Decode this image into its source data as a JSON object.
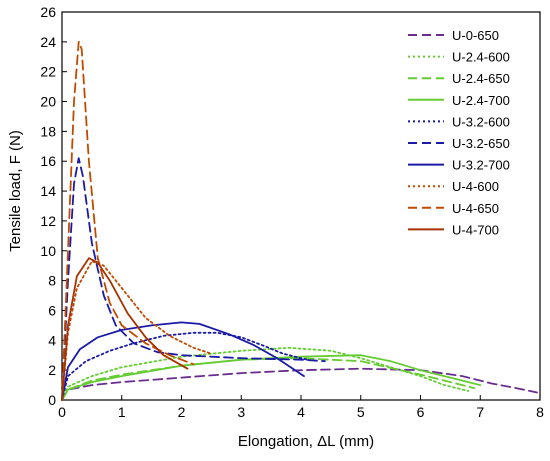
{
  "chart_data": {
    "type": "line",
    "title": "",
    "xlabel": "Elongation, ΔL (mm)",
    "ylabel": "Tensile load, F (N)",
    "xlim": [
      0,
      8
    ],
    "ylim": [
      0,
      26
    ],
    "xticks": [
      0,
      1,
      2,
      3,
      4,
      5,
      6,
      7,
      8
    ],
    "yticks": [
      0,
      2,
      4,
      6,
      8,
      10,
      12,
      14,
      16,
      18,
      20,
      22,
      24,
      26
    ],
    "grid": false,
    "legend_position": "top-right",
    "series": [
      {
        "name": "U-0-650",
        "color": "#6a2c91",
        "dash": "long-dash",
        "points": [
          [
            0,
            0
          ],
          [
            0.1,
            0.7
          ],
          [
            0.5,
            1.0
          ],
          [
            1,
            1.2
          ],
          [
            2,
            1.5
          ],
          [
            3,
            1.8
          ],
          [
            4,
            2.0
          ],
          [
            5,
            2.1
          ],
          [
            6,
            2.0
          ],
          [
            6.7,
            1.6
          ],
          [
            7.2,
            1.1
          ],
          [
            7.6,
            0.8
          ],
          [
            7.95,
            0.5
          ]
        ]
      },
      {
        "name": "U-2.4-600",
        "color": "#66cc33",
        "dash": "dot",
        "points": [
          [
            0,
            0
          ],
          [
            0.1,
            0.9
          ],
          [
            0.5,
            1.6
          ],
          [
            1,
            2.2
          ],
          [
            2,
            2.9
          ],
          [
            3,
            3.3
          ],
          [
            3.8,
            3.5
          ],
          [
            4.5,
            3.3
          ],
          [
            5,
            2.8
          ],
          [
            5.5,
            2.2
          ],
          [
            6,
            1.6
          ],
          [
            6.4,
            1.0
          ],
          [
            6.8,
            0.6
          ]
        ]
      },
      {
        "name": "U-2.4-650",
        "color": "#66cc33",
        "dash": "long-dash",
        "points": [
          [
            0,
            0
          ],
          [
            0.1,
            0.7
          ],
          [
            0.5,
            1.3
          ],
          [
            1,
            1.7
          ],
          [
            2,
            2.3
          ],
          [
            3,
            2.7
          ],
          [
            4,
            2.8
          ],
          [
            5,
            2.6
          ],
          [
            6,
            1.7
          ],
          [
            6.5,
            1.2
          ],
          [
            6.9,
            0.8
          ]
        ]
      },
      {
        "name": "U-2.4-700",
        "color": "#66cc33",
        "dash": "solid",
        "points": [
          [
            0,
            0
          ],
          [
            0.1,
            0.7
          ],
          [
            0.5,
            1.2
          ],
          [
            1,
            1.6
          ],
          [
            2,
            2.3
          ],
          [
            3,
            2.7
          ],
          [
            4,
            2.9
          ],
          [
            5,
            3.0
          ],
          [
            5.5,
            2.6
          ],
          [
            6,
            2.0
          ],
          [
            6.5,
            1.5
          ],
          [
            7.0,
            1.0
          ]
        ]
      },
      {
        "name": "U-3.2-600",
        "color": "#1a1aa6",
        "dash": "dot",
        "points": [
          [
            0,
            0
          ],
          [
            0.1,
            1.6
          ],
          [
            0.4,
            2.6
          ],
          [
            0.8,
            3.3
          ],
          [
            1.2,
            3.8
          ],
          [
            1.7,
            4.3
          ],
          [
            2.2,
            4.5
          ],
          [
            2.6,
            4.5
          ],
          [
            3,
            4.2
          ],
          [
            3.4,
            3.6
          ],
          [
            3.7,
            3.1
          ],
          [
            4.1,
            2.7
          ]
        ]
      },
      {
        "name": "U-3.2-650",
        "color": "#1a1aa6",
        "dash": "long-dash",
        "points": [
          [
            0,
            0
          ],
          [
            0.1,
            8.0
          ],
          [
            0.2,
            14.5
          ],
          [
            0.28,
            16.2
          ],
          [
            0.35,
            15.0
          ],
          [
            0.5,
            10.5
          ],
          [
            0.7,
            7.0
          ],
          [
            0.9,
            5.0
          ],
          [
            1.2,
            3.8
          ],
          [
            1.6,
            3.2
          ],
          [
            2,
            3.0
          ],
          [
            3,
            2.8
          ],
          [
            4,
            2.7
          ],
          [
            4.4,
            2.6
          ]
        ]
      },
      {
        "name": "U-3.2-700",
        "color": "#1a1aa6",
        "dash": "solid",
        "points": [
          [
            0,
            0
          ],
          [
            0.1,
            2.2
          ],
          [
            0.3,
            3.4
          ],
          [
            0.6,
            4.2
          ],
          [
            1,
            4.7
          ],
          [
            1.5,
            5.0
          ],
          [
            2,
            5.2
          ],
          [
            2.3,
            5.1
          ],
          [
            2.8,
            4.4
          ],
          [
            3.2,
            3.7
          ],
          [
            3.6,
            2.8
          ],
          [
            4.05,
            1.6
          ]
        ]
      },
      {
        "name": "U-4-600",
        "color": "#c04a00",
        "dash": "dot",
        "points": [
          [
            0,
            0
          ],
          [
            0.1,
            4.5
          ],
          [
            0.25,
            7.5
          ],
          [
            0.5,
            9.3
          ],
          [
            0.7,
            9.0
          ],
          [
            1,
            7.5
          ],
          [
            1.4,
            5.5
          ],
          [
            1.8,
            4.3
          ],
          [
            2.2,
            3.5
          ],
          [
            2.5,
            3.1
          ]
        ]
      },
      {
        "name": "U-4-650",
        "color": "#c04a00",
        "dash": "long-dash",
        "points": [
          [
            0,
            0
          ],
          [
            0.1,
            10
          ],
          [
            0.2,
            20
          ],
          [
            0.28,
            24.0
          ],
          [
            0.33,
            23.5
          ],
          [
            0.45,
            16
          ],
          [
            0.6,
            9.5
          ],
          [
            0.8,
            6.5
          ],
          [
            1,
            5.0
          ],
          [
            1.4,
            3.8
          ],
          [
            1.8,
            3.0
          ],
          [
            2.2,
            2.4
          ]
        ]
      },
      {
        "name": "U-4-700",
        "color": "#a83200",
        "dash": "solid",
        "points": [
          [
            0,
            0
          ],
          [
            0.1,
            5.0
          ],
          [
            0.25,
            8.3
          ],
          [
            0.45,
            9.5
          ],
          [
            0.6,
            9.2
          ],
          [
            0.8,
            8.0
          ],
          [
            1.1,
            5.8
          ],
          [
            1.4,
            4.2
          ],
          [
            1.7,
            3.0
          ],
          [
            2.1,
            2.1
          ]
        ]
      }
    ]
  }
}
